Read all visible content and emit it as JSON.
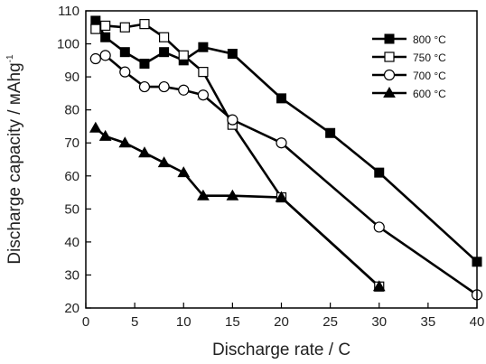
{
  "chart_data": {
    "type": "line",
    "xlabel": "Discharge rate / C",
    "ylabel": "Discharge capacity / мAhg",
    "ylabel_superscript": "-1",
    "xlim": [
      0,
      40
    ],
    "ylim": [
      20,
      110
    ],
    "xticks": [
      0,
      5,
      10,
      15,
      20,
      25,
      30,
      35,
      40
    ],
    "yticks": [
      20,
      30,
      40,
      50,
      60,
      70,
      80,
      90,
      100,
      110
    ],
    "legend_position": "top-right",
    "grid": false,
    "series": [
      {
        "name": "800 °C",
        "marker": "filled-square",
        "x": [
          1,
          2,
          4,
          6,
          8,
          10,
          12,
          15,
          20,
          25,
          30,
          40
        ],
        "y": [
          107,
          102,
          97.5,
          94,
          97.5,
          95,
          99,
          97,
          83.5,
          73,
          61,
          34
        ]
      },
      {
        "name": "750 °C",
        "marker": "open-square",
        "x": [
          1,
          2,
          4,
          6,
          8,
          10,
          12,
          15,
          20,
          30
        ],
        "y": [
          104.5,
          105.5,
          105,
          106,
          102,
          96.5,
          91.5,
          75.5,
          53.5,
          26.5
        ]
      },
      {
        "name": "700 °C",
        "marker": "open-circle",
        "x": [
          1,
          2,
          4,
          6,
          8,
          10,
          12,
          15,
          20,
          30,
          40
        ],
        "y": [
          95.5,
          96.5,
          91.5,
          87,
          87,
          86,
          84.5,
          77,
          70,
          44.5,
          24
        ]
      },
      {
        "name": "600 °C",
        "marker": "filled-triangle",
        "x": [
          1,
          2,
          4,
          6,
          8,
          10,
          12,
          15,
          20,
          30
        ],
        "y": [
          74.5,
          72,
          70,
          67,
          64,
          61,
          54,
          54,
          53.5,
          26.5
        ]
      }
    ]
  }
}
